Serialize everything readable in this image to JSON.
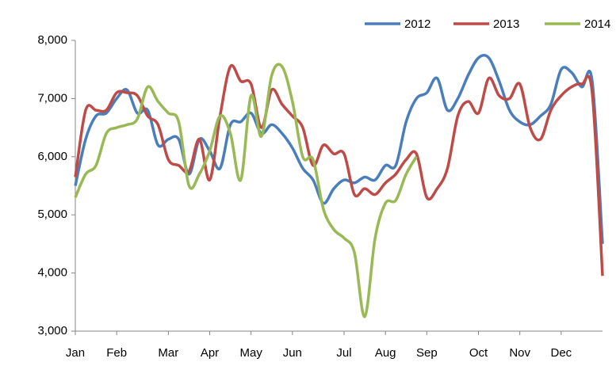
{
  "chart_data": {
    "type": "line",
    "categories": [
      "Jan",
      null,
      null,
      null,
      "Feb",
      null,
      null,
      null,
      null,
      "Mar",
      null,
      null,
      null,
      "Apr",
      null,
      null,
      null,
      "May",
      null,
      null,
      null,
      "Jun",
      null,
      null,
      null,
      null,
      "Jul",
      null,
      null,
      null,
      "Aug",
      null,
      null,
      null,
      "Sep",
      null,
      null,
      null,
      null,
      "Oct",
      null,
      null,
      null,
      "Nov",
      null,
      null,
      null,
      "Dec",
      null,
      null,
      null,
      null
    ],
    "series": [
      {
        "name": "2012",
        "color": "#4a7ebb",
        "values": [
          5500,
          6300,
          6700,
          6750,
          7000,
          7150,
          6750,
          6800,
          6200,
          6300,
          6300,
          5700,
          6300,
          6100,
          5800,
          6550,
          6600,
          6750,
          6400,
          6550,
          6400,
          6150,
          5800,
          5600,
          5200,
          5450,
          5600,
          5550,
          5650,
          5600,
          5850,
          5850,
          6600,
          7000,
          7100,
          7350,
          6800,
          7000,
          7400,
          7700,
          7700,
          7300,
          6800,
          6600,
          6550,
          6700,
          6900,
          7500,
          7450,
          7200,
          7300,
          4500
        ]
      },
      {
        "name": "2013",
        "color": "#be4b48",
        "values": [
          5650,
          6800,
          6800,
          6800,
          7100,
          7100,
          7050,
          6700,
          6550,
          5950,
          5850,
          5750,
          6300,
          5600,
          6700,
          7550,
          7300,
          7250,
          6500,
          7150,
          6900,
          6700,
          6500,
          5850,
          6200,
          6050,
          6050,
          5350,
          5450,
          5350,
          5550,
          5700,
          5950,
          6050,
          5300,
          5450,
          5800,
          6700,
          6950,
          6750,
          7350,
          7050,
          7000,
          7250,
          6500,
          6300,
          6800,
          7050,
          7200,
          7250,
          7100,
          3950
        ]
      },
      {
        "name": "2014",
        "color": "#98b954",
        "values": [
          5300,
          5700,
          5850,
          6400,
          6500,
          6550,
          6650,
          7200,
          6950,
          6750,
          6600,
          5500,
          5700,
          6100,
          6700,
          6400,
          5600,
          7050,
          6350,
          7400,
          7550,
          6950,
          6000,
          5950,
          5100,
          4750,
          4600,
          4350,
          3250,
          4600,
          5200,
          5250,
          5700,
          6000,
          null,
          null,
          null,
          null,
          null,
          null,
          null,
          null,
          null,
          null,
          null,
          null,
          null,
          null,
          null,
          null,
          null,
          null
        ]
      }
    ],
    "ylim": [
      3000,
      8000
    ],
    "yticks": [
      {
        "value": 3000,
        "label": "3,000"
      },
      {
        "value": 4000,
        "label": "4,000"
      },
      {
        "value": 5000,
        "label": "5,000"
      },
      {
        "value": 6000,
        "label": "6,000"
      },
      {
        "value": 7000,
        "label": "7,000"
      },
      {
        "value": 8000,
        "label": "8,000"
      }
    ],
    "grid": false,
    "legend": "top-right"
  }
}
